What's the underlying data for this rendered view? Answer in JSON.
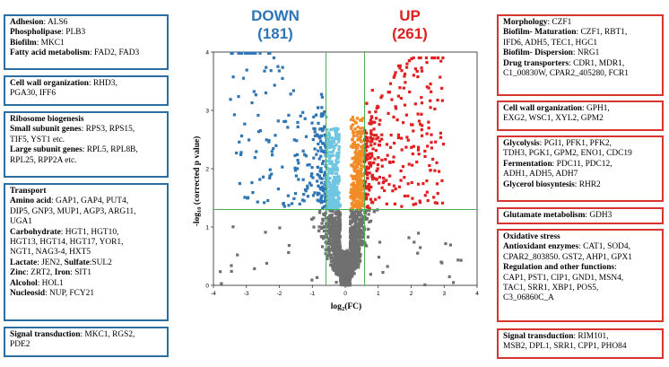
{
  "header": {
    "down": {
      "label": "DOWN",
      "count": "(181)",
      "color": "#2e75b6"
    },
    "up": {
      "label": "UP",
      "count": "(261)",
      "color": "#e02020"
    }
  },
  "left_boxes": [
    {
      "lines": [
        {
          "key": "Adhesion",
          "text": ": ALS6"
        },
        {
          "key": "Phospholipase",
          "text": ": PLB3"
        },
        {
          "key": "Biofilm",
          "text": ": MKC1"
        },
        {
          "key": "Fatty acid metabolism",
          "text": ": FAD2, FAD3"
        }
      ]
    },
    {
      "lines": [
        {
          "key": "Cell wall organization",
          "text": ": RHD3,"
        },
        {
          "key": "",
          "text": "PGA30, IFF6"
        }
      ]
    },
    {
      "lines": [
        {
          "key": "Ribosome biogenesis",
          "text": ""
        },
        {
          "key": "Small subunit genes",
          "text": ": RPS3, RPS15,"
        },
        {
          "key": "",
          "text": "TIF5, YST1 etc."
        },
        {
          "key": "Large subunit genes",
          "text": ": RPL5, RPL8B,"
        },
        {
          "key": "",
          "text": "RPL25, RPP2A etc."
        }
      ]
    },
    {
      "lines": [
        {
          "key": "Transport",
          "text": ""
        },
        {
          "key": "Amino acid",
          "text": ": GAP1, GAP4, PUT4,"
        },
        {
          "key": "",
          "text": "DIP5, GNP3, MUP1, AGP3, ARG11,"
        },
        {
          "key": "",
          "text": "UGA1"
        },
        {
          "key": "Carbohydrate",
          "text": ": HGT1, HGT10,"
        },
        {
          "key": "",
          "text": "HGT13, HGT14, HGT17, YOR1,"
        },
        {
          "key": "",
          "text": "NGT1, NAG3-4, HXT5"
        },
        {
          "key": "Lactate",
          "text": ": JEN2, ",
          "key2": "Sulfate",
          "text2": ":SUL2"
        },
        {
          "key": "Zinc",
          "text": ": ZRT2, ",
          "key2": "Iron",
          "text2": ": SIT1"
        },
        {
          "key": "Alcohol",
          "text": ": HOL1"
        },
        {
          "key": "Nucleosid",
          "text": ": NUP, FCY21"
        }
      ]
    },
    {
      "lines": [
        {
          "key": "Signal transduction",
          "text": ": MKC1, RGS2,"
        },
        {
          "key": "",
          "text": "PDE2"
        }
      ]
    }
  ],
  "right_boxes": [
    {
      "lines": [
        {
          "key": "Morphology",
          "text": ": CZF1"
        },
        {
          "key": "Biofilm- Maturation",
          "text": ": CZF1, RBT1,"
        },
        {
          "key": "",
          "text": "IFD6, ADH5, TEC1, HGC1"
        },
        {
          "key": "Biofilm- Dispersion",
          "text": ": NRG1"
        },
        {
          "key": "Drug transporters",
          "text": ": CDR1, MDR1,"
        },
        {
          "key": "",
          "text": "C1_00830W, CPAR2_405280, FCR1"
        }
      ]
    },
    {
      "lines": [
        {
          "key": "Cell wall organization",
          "text": ": GPH1,"
        },
        {
          "key": "",
          "text": "EXG2, WSC1, XYL2, GPM2"
        }
      ]
    },
    {
      "lines": [
        {
          "key": "Glycolysis",
          "text": ": PGI1, PFK1, PFK2,"
        },
        {
          "key": "",
          "text": "TDH3, PGK1, GPM2, ENO1, CDC19"
        },
        {
          "key": "Fermentation",
          "text": ": PDC11, PDC12,"
        },
        {
          "key": "",
          "text": "ADH1, ADH5, ADH7"
        },
        {
          "key": "Glycerol biosyntesis",
          "text": ": RHR2"
        }
      ]
    },
    {
      "lines": [
        {
          "key": "Glutamate metabolism",
          "text": ": GDH3"
        }
      ]
    },
    {
      "lines": [
        {
          "key": "Oxidative stress",
          "text": ""
        },
        {
          "key": "Antioxidant enzymes",
          "text": ": CAT1, SOD4,"
        },
        {
          "key": "",
          "text": "CPAR2_803850. GST2, AHP1, GPX1"
        },
        {
          "key": "Regulation and other functions",
          "text": ":"
        },
        {
          "key": "",
          "text": "CAP1, PST1, CIP1, GND1, MSN4,"
        },
        {
          "key": "",
          "text": "TAC1, SRR1, XBP1, POS5,"
        },
        {
          "key": "",
          "text": "C3_06860C_A"
        }
      ]
    },
    {
      "lines": [
        {
          "key": "Signal transduction",
          "text": ": RIM101,"
        },
        {
          "key": "",
          "text": "MSB2, DPL1, SRR1, CPP1, PHO84"
        }
      ]
    }
  ],
  "plot": {
    "xlabel_main": "log",
    "xlabel_sub": "2",
    "xlabel_tail": "(FC)",
    "ylabel_pre": "-log",
    "ylabel_sub": "10",
    "ylabel_tail": " (corrected p value)",
    "xticks": [
      "-4",
      "-3",
      "-2",
      "-1",
      "0",
      "1",
      "2",
      "3",
      "4"
    ],
    "yticks": [
      "0",
      "1",
      "2",
      "3",
      "4"
    ],
    "xlim": [
      -4,
      4
    ],
    "ylim": [
      0,
      4
    ],
    "fc_threshold": 0.585,
    "p_threshold": 1.3,
    "colors": {
      "down_sig": "#2e75b6",
      "down_mild": "#6ec6e0",
      "up_sig": "#e02020",
      "up_mild": "#f28c28",
      "ns": "#707070",
      "threshold_line": "#4caf50"
    }
  }
}
